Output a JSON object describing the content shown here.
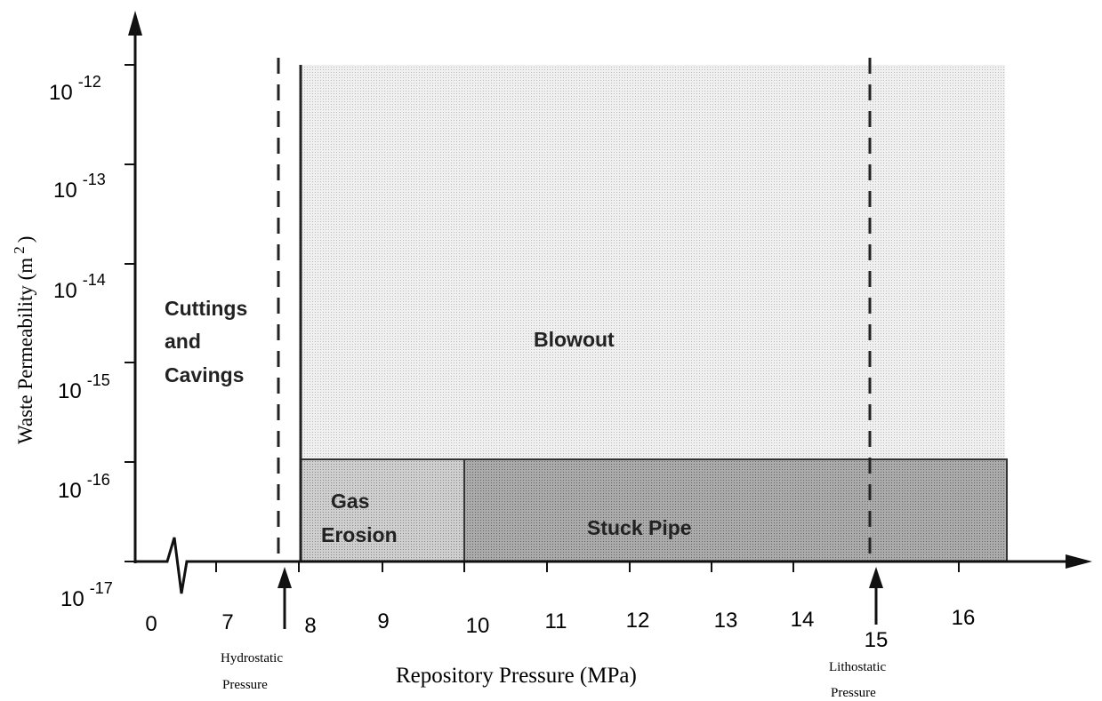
{
  "y_axis": {
    "label": {
      "text": "Waste Permeability (m",
      "superscript": "2",
      "close": ")"
    },
    "ticks": [
      {
        "base": "10",
        "exponent": "-12"
      },
      {
        "base": "10",
        "exponent": "-13"
      },
      {
        "base": "10",
        "exponent": "-14"
      },
      {
        "base": "10",
        "exponent": "-15"
      },
      {
        "base": "10",
        "exponent": "-16"
      },
      {
        "base": "10",
        "exponent": "-17"
      }
    ]
  },
  "x_axis": {
    "label": "Repository Pressure (MPa)",
    "ticks": [
      "0",
      "7",
      "8",
      "9",
      "10",
      "11",
      "12",
      "13",
      "14",
      "16"
    ]
  },
  "regions": {
    "cuttings": [
      "Cuttings",
      "and",
      "Cavings"
    ],
    "blowout": "Blowout",
    "gas_erosion": [
      "Gas",
      "Erosion"
    ],
    "stuck_pipe": "Stuck Pipe"
  },
  "markers": {
    "hydrostatic": [
      "Hydrostatic",
      "Pressure"
    ],
    "lithostatic": {
      "value": "15",
      "label": [
        "Lithostatic",
        "Pressure"
      ]
    }
  }
}
